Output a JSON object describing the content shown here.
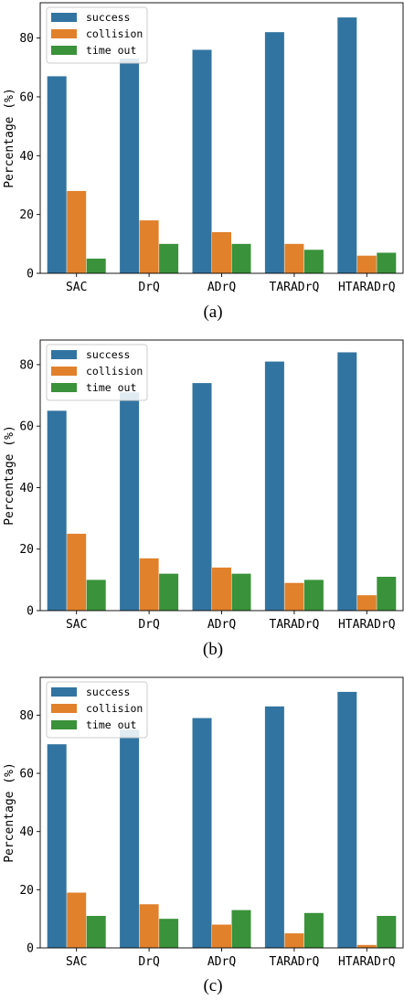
{
  "colors": {
    "success": "#3274a1",
    "collision": "#e1812c",
    "time_out": "#3a923a"
  },
  "chart_data": [
    {
      "type": "bar",
      "caption": "(a)",
      "ylabel": "Percentage (%)",
      "ylim": [
        0,
        92
      ],
      "yticks": [
        0,
        20,
        40,
        60,
        80
      ],
      "legend_position": "upper-left",
      "categories": [
        "SAC",
        "DrQ",
        "ADrQ",
        "TARADrQ",
        "HTARADrQ"
      ],
      "series": [
        {
          "name": "success",
          "values": [
            67,
            73,
            76,
            82,
            87
          ]
        },
        {
          "name": "collision",
          "values": [
            28,
            18,
            14,
            10,
            6
          ]
        },
        {
          "name": "time out",
          "values": [
            5,
            10,
            10,
            8,
            7
          ]
        }
      ]
    },
    {
      "type": "bar",
      "caption": "(b)",
      "ylabel": "Percentage (%)",
      "ylim": [
        0,
        88
      ],
      "yticks": [
        0,
        20,
        40,
        60,
        80
      ],
      "legend_position": "upper-left",
      "categories": [
        "SAC",
        "DrQ",
        "ADrQ",
        "TARADrQ",
        "HTARADrQ"
      ],
      "series": [
        {
          "name": "success",
          "values": [
            65,
            71,
            74,
            81,
            84
          ]
        },
        {
          "name": "collision",
          "values": [
            25,
            17,
            14,
            9,
            5
          ]
        },
        {
          "name": "time out",
          "values": [
            10,
            12,
            12,
            10,
            11
          ]
        }
      ]
    },
    {
      "type": "bar",
      "caption": "(c)",
      "ylabel": "Percentage (%)",
      "ylim": [
        0,
        93
      ],
      "yticks": [
        0,
        20,
        40,
        60,
        80
      ],
      "legend_position": "upper-left",
      "categories": [
        "SAC",
        "DrQ",
        "ADrQ",
        "TARADrQ",
        "HTARADrQ"
      ],
      "series": [
        {
          "name": "success",
          "values": [
            70,
            75,
            79,
            83,
            88
          ]
        },
        {
          "name": "collision",
          "values": [
            19,
            15,
            8,
            5,
            1
          ]
        },
        {
          "name": "time out",
          "values": [
            11,
            10,
            13,
            12,
            11
          ]
        }
      ]
    }
  ]
}
